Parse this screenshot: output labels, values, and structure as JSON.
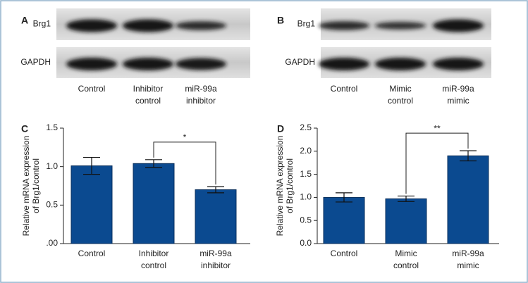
{
  "blots": [
    {
      "panel": "A",
      "rows": [
        "Brg1",
        "GAPDH"
      ],
      "lanes": [
        "Control",
        "Inhibitor control",
        "miR-99a inhibitor"
      ]
    },
    {
      "panel": "B",
      "rows": [
        "Brg1",
        "GAPDH"
      ],
      "lanes": [
        "Control",
        "Mimic control",
        "miR-99a mimic"
      ]
    }
  ],
  "chart_data": [
    {
      "type": "bar",
      "panel": "C",
      "ylabel": [
        "Relative mRNA expression",
        "of Brg1/control"
      ],
      "categories": [
        "Control",
        "Inhibitor control",
        "miR-99a inhibitor"
      ],
      "values": [
        1.01,
        1.04,
        0.7
      ],
      "errors": [
        0.11,
        0.05,
        0.04
      ],
      "color": "#0b4a90",
      "ylim": [
        0,
        1.5
      ],
      "yticks": [
        {
          "value": 0,
          "label": ".00"
        },
        0.5,
        {
          "value": 1,
          "label": "1.0"
        },
        1.5
      ],
      "annotation": "*"
    },
    {
      "type": "bar",
      "panel": "D",
      "ylabel": [
        "Relative mRNA expression",
        "of Brg1/control"
      ],
      "categories": [
        "Control",
        "Mimic control",
        "miR-99a mimic"
      ],
      "values": [
        1.0,
        0.97,
        1.9
      ],
      "errors": [
        0.1,
        0.06,
        0.11
      ],
      "color": "#0b4a90",
      "ylim": [
        0,
        2.5
      ],
      "yticks": [
        {
          "value": 0,
          "label": "0.0"
        },
        0.5,
        {
          "value": 1,
          "label": "1.0"
        },
        1.5,
        {
          "value": 2,
          "label": "2.0"
        },
        2.5
      ],
      "annotation": "**"
    }
  ]
}
